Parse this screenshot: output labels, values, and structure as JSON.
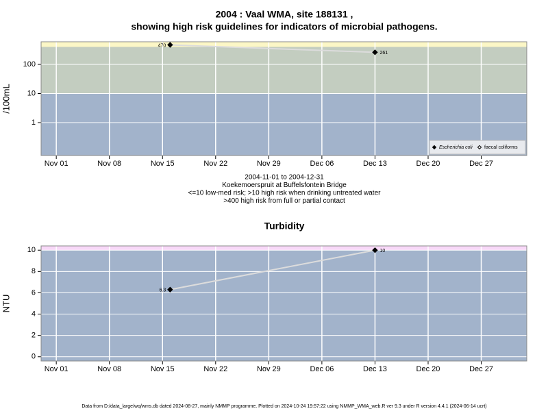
{
  "chart_data": [
    {
      "type": "line",
      "title": "2004 : Vaal WMA, site 188131 ,",
      "subtitle": "showing high risk guidelines for indicators of microbial pathogens.",
      "y_label": "/100mL",
      "log_y": true,
      "grid": true,
      "x": [
        "2004-11-16",
        "2004-12-13"
      ],
      "series": [
        {
          "name": "Escherichia coli",
          "color": "#000000",
          "line_color": "#dcdcdc",
          "marker": "filled",
          "values": [
            470,
            261
          ]
        },
        {
          "name": "faecal coliforms",
          "color": "#000000",
          "line_color": "#dcdcdc",
          "marker": "open",
          "values": [
            null,
            null
          ]
        }
      ],
      "xlim": [
        "2004-10-30",
        "2005-01-02"
      ],
      "xticks": [
        {
          "value": "2004-11-01",
          "label": "Nov 01"
        },
        {
          "value": "2004-11-08",
          "label": "Nov 08"
        },
        {
          "value": "2004-11-15",
          "label": "Nov 15"
        },
        {
          "value": "2004-11-22",
          "label": "Nov 22"
        },
        {
          "value": "2004-11-29",
          "label": "Nov 29"
        },
        {
          "value": "2004-12-06",
          "label": "Dec 06"
        },
        {
          "value": "2004-12-13",
          "label": "Dec 13"
        },
        {
          "value": "2004-12-20",
          "label": "Dec 20"
        },
        {
          "value": "2004-12-27",
          "label": "Dec 27"
        }
      ],
      "ylim": [
        0.074,
        600
      ],
      "yticks": [
        1,
        10,
        100
      ],
      "bands": [
        {
          "from": 0.074,
          "color": "#a2b3cb"
        },
        {
          "from": 10,
          "color": "#c3cdc0"
        },
        {
          "from": 400,
          "color": "#fcf7c6"
        }
      ],
      "legend": "bottom-right",
      "notes": [
        "2004-11-01 to 2004-12-31",
        "Koekemoerspruit at Buffelsfontein Bridge",
        "<=10 low-med risk; >10 high risk when drinking untreated water",
        ">400 high risk from full or partial contact"
      ]
    },
    {
      "type": "line",
      "title": "Turbidity",
      "y_label": "NTU",
      "log_y": false,
      "grid": true,
      "x": [
        "2004-11-16",
        "2004-12-13"
      ],
      "series": [
        {
          "name": "Turbidity",
          "color": "#000000",
          "line_color": "#dcdcdc",
          "marker": "filled",
          "values": [
            6.3,
            10
          ]
        }
      ],
      "xlim": [
        "2004-10-30",
        "2005-01-02"
      ],
      "xticks": [
        {
          "value": "2004-11-01",
          "label": "Nov 01"
        },
        {
          "value": "2004-11-08",
          "label": "Nov 08"
        },
        {
          "value": "2004-11-15",
          "label": "Nov 15"
        },
        {
          "value": "2004-11-22",
          "label": "Nov 22"
        },
        {
          "value": "2004-11-29",
          "label": "Nov 29"
        },
        {
          "value": "2004-12-06",
          "label": "Dec 06"
        },
        {
          "value": "2004-12-13",
          "label": "Dec 13"
        },
        {
          "value": "2004-12-20",
          "label": "Dec 20"
        },
        {
          "value": "2004-12-27",
          "label": "Dec 27"
        }
      ],
      "ylim": [
        -0.4,
        10.4
      ],
      "yticks": [
        0,
        2,
        4,
        6,
        8,
        10
      ],
      "bands": [
        {
          "from": -0.4,
          "color": "#a2b3cb"
        },
        {
          "from": 10,
          "color": "#f8d8f8"
        }
      ]
    }
  ],
  "footer": "Data from D:/data_large/wq/wms.db dated 2024-08-27, mainly NMMP programme. Plotted on 2024-10-24 19:57:22 using NMMP_WMA_web.R ver 9.3 under R version 4.4.1 (2024-06-14 ucrt)"
}
